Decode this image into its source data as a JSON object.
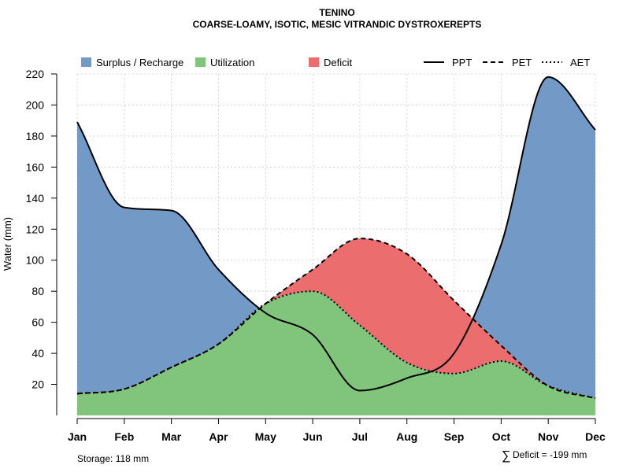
{
  "chart_data": {
    "type": "area",
    "title": "TENINO",
    "subtitle": "COARSE-LOAMY, ISOTIC, MESIC VITRANDIC DYSTROXEREPTS",
    "ylabel": "Water (mm)",
    "xlabel": "",
    "ylim": [
      0,
      220
    ],
    "yticks": [
      20,
      40,
      60,
      80,
      100,
      120,
      140,
      160,
      180,
      200,
      220
    ],
    "categories": [
      "Jan",
      "Feb",
      "Mar",
      "Apr",
      "May",
      "Jun",
      "Jul",
      "Aug",
      "Sep",
      "Oct",
      "Nov",
      "Dec"
    ],
    "grid": true,
    "series": [
      {
        "name": "PPT",
        "style": "solid",
        "values": [
          189,
          134,
          132,
          94,
          66,
          52,
          16,
          24,
          40,
          110,
          218,
          184
        ]
      },
      {
        "name": "PET",
        "style": "dashed",
        "values": [
          14,
          17,
          31,
          46,
          72,
          94,
          114,
          104,
          74,
          45,
          19,
          11
        ]
      },
      {
        "name": "AET",
        "style": "dotted",
        "values": [
          14,
          17,
          31,
          46,
          72,
          80,
          58,
          34,
          27,
          35,
          19,
          11
        ]
      }
    ],
    "areas": [
      {
        "name": "Surplus / Recharge",
        "color": "#7399C6"
      },
      {
        "name": "Utilization",
        "color": "#80C57B"
      },
      {
        "name": "Deficit",
        "color": "#EC6D6D"
      }
    ],
    "legend": {
      "placement": "top"
    },
    "annotations": {
      "storage": "Storage: 118 mm",
      "deficit_symbol": "∑",
      "deficit": "Deficit = -199 mm"
    }
  }
}
